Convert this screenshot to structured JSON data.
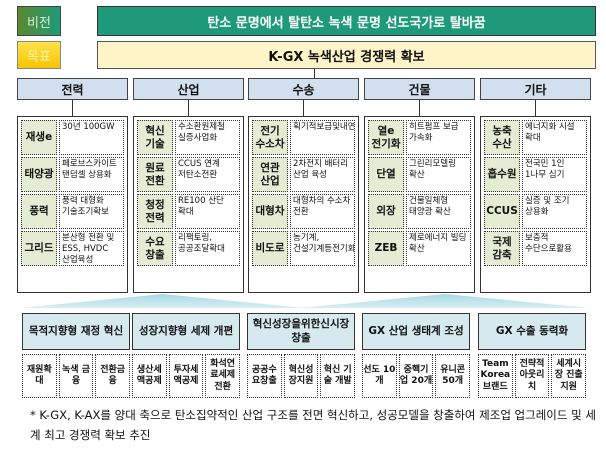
{
  "vision": {
    "label": "비전",
    "text": "탄소 문명에서 탈탄소 녹색 문명 선도국가로 탈바꿈"
  },
  "goal": {
    "label": "목표",
    "text": "K-GX 녹색산업 경쟁력 확보"
  },
  "sectors": [
    {
      "title": "전력",
      "items": [
        {
          "k": "재생e",
          "v": "30년 100GW"
        },
        {
          "k": "태양광",
          "v": "페로브스카이트 탠덤셀 상용화"
        },
        {
          "k": "풍력",
          "v": "풍력 대형화 기술조기확보"
        },
        {
          "k": "그리드",
          "v": "분산형 전환 및 ESS, HVDC 산업육성"
        }
      ]
    },
    {
      "title": "산업",
      "items": [
        {
          "k": "혁신 기술",
          "v": "수소환원제철 실증사업화"
        },
        {
          "k": "원료 전환",
          "v": "CCUS 연계 저탄소전환"
        },
        {
          "k": "청정 전력",
          "v": "RE100 산단 확대"
        },
        {
          "k": "수요 창출",
          "v": "리팩토링, 공공조달확대"
        }
      ]
    },
    {
      "title": "수송",
      "items": [
        {
          "k": "전기 수소차",
          "v": "획기적보급및내연차전환"
        },
        {
          "k": "연관 산업",
          "v": "2차전지 배터리 산업 육성"
        },
        {
          "k": "대형차",
          "v": "대형차의 수소차 전환"
        },
        {
          "k": "비도로",
          "v": "농기계, 건설기계등전기화"
        }
      ]
    },
    {
      "title": "건물",
      "items": [
        {
          "k": "열e 전기화",
          "v": "히트펌프 보급 가속화"
        },
        {
          "k": "단열",
          "v": "그린리모델링 확산"
        },
        {
          "k": "외장",
          "v": "건물일체형 태양광 확산"
        },
        {
          "k": "ZEB",
          "v": "제로에너지 빌딩 확산"
        }
      ]
    },
    {
      "title": "기타",
      "items": [
        {
          "k": "농축 수산",
          "v": "에너지화 시설 확대"
        },
        {
          "k": "흡수원",
          "v": "전국민 1인 1나무 심기"
        },
        {
          "k": "CCUS",
          "v": "실증 및 조기 상용화"
        },
        {
          "k": "국제 감축",
          "v": "보충적 수단으로활용"
        }
      ]
    }
  ],
  "strategies": [
    {
      "title": "목적지향형 재정 혁신",
      "cells": [
        "재원확대",
        "녹색 금융",
        "전환금융"
      ]
    },
    {
      "title": "성장지향형 세제 개편",
      "cells": [
        "생산세액공제",
        "투자세액공제",
        "화석연료세제전환"
      ]
    },
    {
      "title": "혁신성장을위한신시장창출",
      "cells": [
        "공공수요창출",
        "혁신성장지원",
        "혁신 기술 개발"
      ]
    },
    {
      "title": "GX 산업 생태계 조성",
      "cells": [
        "선도 10개",
        "중핵기업 20개",
        "유니콘 50개"
      ]
    },
    {
      "title": "GX 수출 동력화",
      "cells": [
        "Team Korea 브랜드",
        "전략적 아웃리치",
        "세계시장 진출 지원"
      ]
    }
  ],
  "footnote": "* K-GX, K-AX를 양대 축으로 탄소집약적인 산업 구조를 전면 혁신하고, 성공모델을 창출하여 제조업 업그레이드 및 세계 최고 경쟁력 확보 추진",
  "colors": {
    "vision": "#1e9a7a",
    "goal": "#fff3c8",
    "header": "#d2dfee",
    "key": "#e4ecd4",
    "strategy": "#d6e9ef"
  }
}
